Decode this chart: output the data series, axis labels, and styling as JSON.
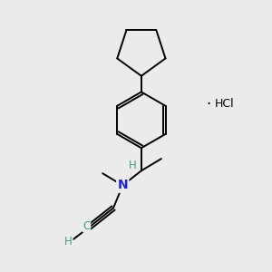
{
  "background_color": "#ebebeb",
  "bond_color": "#000000",
  "nitrogen_color": "#2222cc",
  "teal_color": "#4a9a8a",
  "figsize": [
    3.0,
    3.0
  ],
  "dpi": 100,
  "hcl_text": "HCl",
  "h_chiral": "H",
  "n_label": "N",
  "c_label": "C",
  "h_terminal": "H"
}
